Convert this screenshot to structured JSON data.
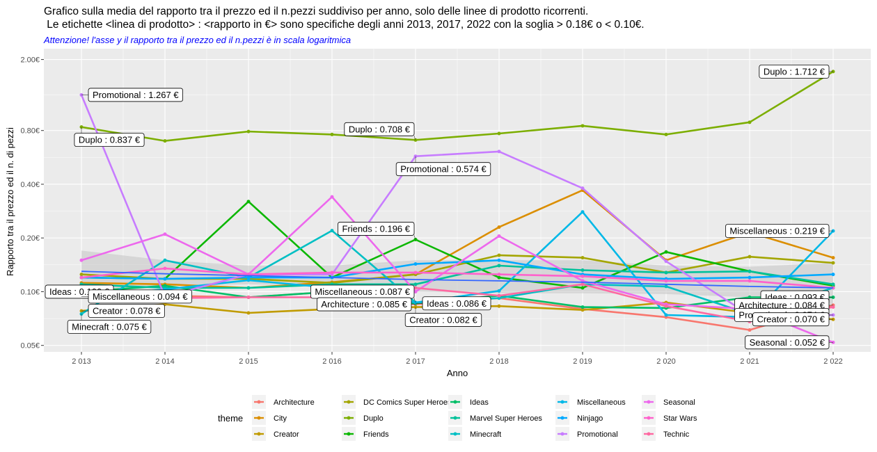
{
  "chart_data": {
    "type": "line",
    "title_line1": "Grafico sulla media del rapporto tra il prezzo ed il n.pezzi suddiviso per anno, solo delle linee di prodotto ricorrenti.",
    "title_line2": " Le etichette <linea di prodotto> : <rapporto in €> sono specifiche degli anni 2013, 2017, 2022 con la soglia > 0.18€ o < 0.10€.",
    "subtitle": "Attenzione! l'asse y il rapporto tra il prezzo ed il n.pezzi è in scala logaritmica",
    "xlabel": "Anno",
    "ylabel": "Rapporto tra il prezzo ed il n. di pezzi",
    "y_scale": "log",
    "ylim": [
      0.046,
      2.3
    ],
    "xlim": [
      2012.55,
      2022.45
    ],
    "x_ticks": [
      2013,
      2014,
      2015,
      2016,
      2017,
      2018,
      2019,
      2020,
      2021,
      2022
    ],
    "x_tick_labels": [
      "2 013",
      "2 014",
      "2 015",
      "2 016",
      "2 017",
      "2 018",
      "2 019",
      "2 020",
      "2 021",
      "2 022"
    ],
    "y_ticks": [
      0.05,
      0.1,
      0.2,
      0.4,
      0.8,
      2.0
    ],
    "y_tick_labels": [
      "0.05€",
      "0.10€",
      "0.20€",
      "0.40€",
      "0.80€",
      "2.00€"
    ],
    "grid": true,
    "panel_background": "#ebebeb",
    "legend_title": "theme",
    "legend_position": "bottom",
    "x": [
      2013,
      2014,
      2015,
      2016,
      2017,
      2018,
      2019,
      2020,
      2021,
      2022
    ],
    "series": [
      {
        "name": "Architecture",
        "color": "#F8766D",
        "values": [
          0.105,
          0.095,
          0.093,
          0.1,
          0.085,
          0.092,
          0.08,
          0.072,
          0.061,
          0.084
        ]
      },
      {
        "name": "City",
        "color": "#DB8E00",
        "values": [
          0.112,
          0.11,
          0.105,
          0.113,
          0.125,
          0.23,
          0.37,
          0.15,
          0.215,
          0.155
        ]
      },
      {
        "name": "Creator",
        "color": "#C09B00",
        "values": [
          0.078,
          0.085,
          0.076,
          0.08,
          0.082,
          0.083,
          0.079,
          0.087,
          0.076,
          0.07
        ]
      },
      {
        "name": "DC Comics Super Heroes",
        "color": "#A3A500",
        "values": [
          0.125,
          0.118,
          0.118,
          0.112,
          0.125,
          0.16,
          0.155,
          0.128,
          0.157,
          0.145
        ]
      },
      {
        "name": "Duplo",
        "color": "#7CAE00",
        "values": [
          0.837,
          0.7,
          0.79,
          0.76,
          0.708,
          0.77,
          0.85,
          0.76,
          0.89,
          1.712
        ]
      },
      {
        "name": "Friends",
        "color": "#0CB702",
        "values": [
          0.12,
          0.118,
          0.32,
          0.12,
          0.196,
          0.12,
          0.105,
          0.167,
          0.13,
          0.108
        ]
      },
      {
        "name": "Ideas",
        "color": "#00BE67",
        "values": [
          0.1,
          0.108,
          0.093,
          0.1,
          0.086,
          0.095,
          0.082,
          0.081,
          0.093,
          0.093
        ]
      },
      {
        "name": "Marvel Super Heroes",
        "color": "#00C19A",
        "values": [
          0.11,
          0.105,
          0.105,
          0.11,
          0.11,
          0.14,
          0.132,
          0.128,
          0.13,
          0.11
        ]
      },
      {
        "name": "Minecraft",
        "color": "#00BFC4",
        "values": [
          0.075,
          0.15,
          0.12,
          0.22,
          0.087,
          0.092,
          0.11,
          0.107,
          0.075,
          0.105
        ]
      },
      {
        "name": "Miscellaneous",
        "color": "#00B8E7",
        "values": [
          0.094,
          0.103,
          0.116,
          0.105,
          0.087,
          0.101,
          0.28,
          0.074,
          0.072,
          0.219
        ]
      },
      {
        "name": "Ninjago",
        "color": "#00A9FF",
        "values": [
          0.12,
          0.118,
          0.12,
          0.12,
          0.143,
          0.15,
          0.125,
          0.118,
          0.12,
          0.125
        ]
      },
      {
        "name": "Promotional",
        "color": "#C77CFF",
        "values": [
          1.267,
          0.094,
          0.125,
          0.125,
          0.574,
          0.61,
          0.38,
          0.148,
          0.074,
          0.074
        ]
      },
      {
        "name": "Seasonal",
        "color": "#ED68ED",
        "values": [
          0.15,
          0.21,
          0.125,
          0.34,
          0.1,
          0.205,
          0.115,
          0.085,
          0.08,
          0.052
        ]
      },
      {
        "name": "Star Wars",
        "color": "#FF61CC",
        "values": [
          0.12,
          0.135,
          0.125,
          0.128,
          0.128,
          0.125,
          0.122,
          0.115,
          0.115,
          0.105
        ]
      },
      {
        "name": "Technic",
        "color": "#FF68A1",
        "values": [
          0.105,
          0.092,
          0.093,
          0.093,
          0.105,
          0.095,
          0.11,
          0.083,
          0.068,
          0.082
        ]
      }
    ],
    "smooth_trend": {
      "color": "#3366FF",
      "ribbon_color": "#c4c4c4",
      "values": [
        0.13,
        0.126,
        0.123,
        0.12,
        0.117,
        0.115,
        0.113,
        0.11,
        0.107,
        0.105
      ],
      "ribbon_low": [
        0.1,
        0.108,
        0.11,
        0.108,
        0.1,
        0.098,
        0.098,
        0.097,
        0.093,
        0.085
      ],
      "ribbon_high": [
        0.17,
        0.15,
        0.14,
        0.14,
        0.15,
        0.15,
        0.15,
        0.14,
        0.138,
        0.145
      ]
    },
    "annotations": [
      {
        "text": "Promotional : 1.267 €",
        "year": 2013,
        "value": 1.267,
        "anchor": "right"
      },
      {
        "text": "Duplo : 0.837 €",
        "year": 2013,
        "value": 0.837,
        "anchor": "below"
      },
      {
        "text": "Ideas : 0.100 €",
        "year": 2013,
        "value": 0.1,
        "anchor": "left"
      },
      {
        "text": "Miscellaneous : 0.094 €",
        "year": 2013,
        "value": 0.094,
        "anchor": "right"
      },
      {
        "text": "Creator : 0.078 €",
        "year": 2013,
        "value": 0.078,
        "anchor": "right"
      },
      {
        "text": "Minecraft : 0.075 €",
        "year": 2013,
        "value": 0.075,
        "anchor": "below"
      },
      {
        "text": "Duplo : 0.708 €",
        "year": 2017,
        "value": 0.708,
        "anchor": "upleft"
      },
      {
        "text": "Promotional : 0.574 €",
        "year": 2017,
        "value": 0.574,
        "anchor": "below"
      },
      {
        "text": "Friends : 0.196 €",
        "year": 2017,
        "value": 0.196,
        "anchor": "upleft"
      },
      {
        "text": "Miscellaneous : 0.087 €",
        "year": 2017,
        "value": 0.087,
        "anchor": "upleft"
      },
      {
        "text": "Architecture : 0.085 €",
        "year": 2017,
        "value": 0.085,
        "anchor": "left"
      },
      {
        "text": "Ideas : 0.086 €",
        "year": 2017,
        "value": 0.086,
        "anchor": "right"
      },
      {
        "text": "Creator : 0.082 €",
        "year": 2017,
        "value": 0.082,
        "anchor": "below"
      },
      {
        "text": "Duplo : 1.712 €",
        "year": 2022,
        "value": 1.712,
        "anchor": "left"
      },
      {
        "text": "Miscellaneous : 0.219 €",
        "year": 2022,
        "value": 0.219,
        "anchor": "left"
      },
      {
        "text": "Ideas : 0.093 €",
        "year": 2022,
        "value": 0.093,
        "anchor": "left"
      },
      {
        "text": "Architecture : 0.084 €",
        "year": 2022,
        "value": 0.084,
        "anchor": "left"
      },
      {
        "text": "Promotional : 0.074 €",
        "year": 2022,
        "value": 0.074,
        "anchor": "left"
      },
      {
        "text": "Creator : 0.070 €",
        "year": 2022,
        "value": 0.07,
        "anchor": "left"
      },
      {
        "text": "Seasonal : 0.052 €",
        "year": 2022,
        "value": 0.052,
        "anchor": "left"
      }
    ]
  }
}
